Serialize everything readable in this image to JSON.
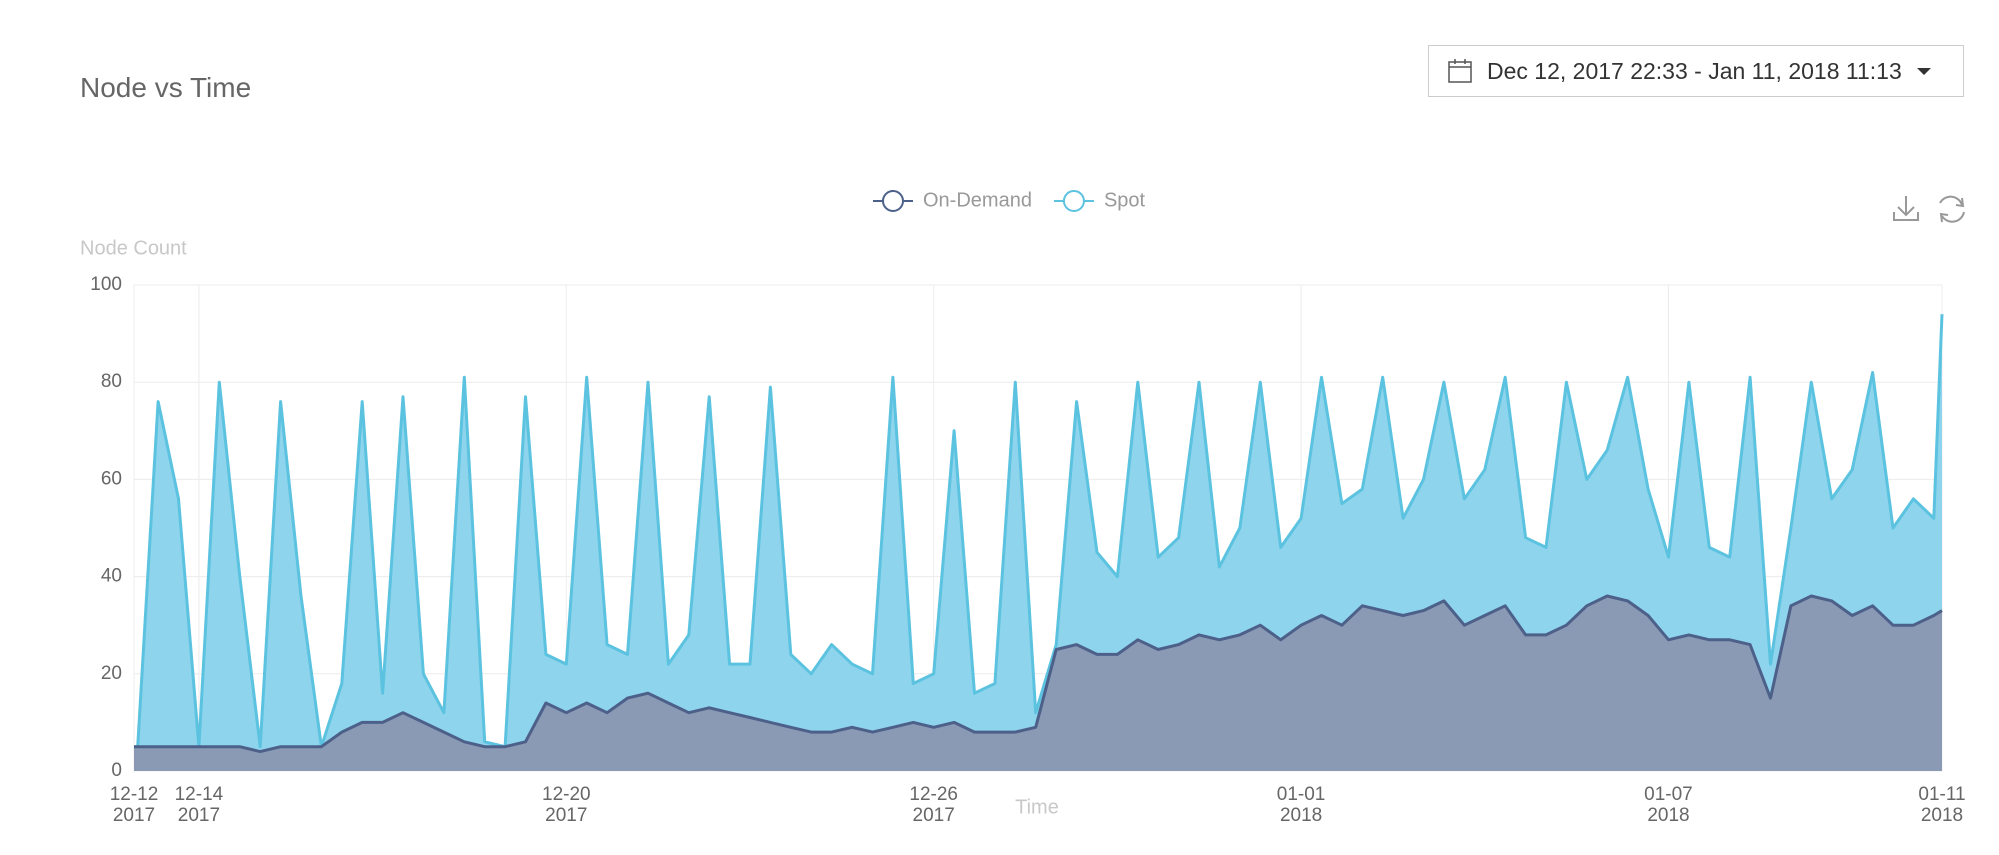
{
  "date_range": "Dec 12, 2017 22:33 - Jan 11, 2018 11:13",
  "chart_data": {
    "type": "area",
    "title": "Node vs Time",
    "y_label": "Node Count",
    "x_label": "Time",
    "xlim": [
      "2017-12-12T22:33",
      "2018-01-11T11:13"
    ],
    "xticks": [
      {
        "value": "2017-12-12T22:33",
        "label": "12-12\n2017"
      },
      {
        "value": "2017-12-14T00:00",
        "label": "12-14\n2017"
      },
      {
        "value": "2017-12-20T00:00",
        "label": "12-20\n2017"
      },
      {
        "value": "2017-12-26T00:00",
        "label": "12-26\n2017"
      },
      {
        "value": "2018-01-01T00:00",
        "label": "01-01\n2018"
      },
      {
        "value": "2018-01-07T00:00",
        "label": "01-07\n2018"
      },
      {
        "value": "2018-01-11T11:13",
        "label": "01-11\n2018"
      }
    ],
    "ylim": [
      0,
      100
    ],
    "yticks": [
      0,
      20,
      40,
      60,
      80,
      100
    ],
    "grid": true,
    "legend": "top",
    "x": [
      "2017-12-12T22:33",
      "2017-12-13T00:00",
      "2017-12-13T08:00",
      "2017-12-13T16:00",
      "2017-12-14T00:00",
      "2017-12-14T08:00",
      "2017-12-14T16:00",
      "2017-12-15T00:00",
      "2017-12-15T08:00",
      "2017-12-15T16:00",
      "2017-12-16T00:00",
      "2017-12-16T08:00",
      "2017-12-16T16:00",
      "2017-12-17T00:00",
      "2017-12-17T08:00",
      "2017-12-17T16:00",
      "2017-12-18T00:00",
      "2017-12-18T08:00",
      "2017-12-18T16:00",
      "2017-12-19T00:00",
      "2017-12-19T08:00",
      "2017-12-19T16:00",
      "2017-12-20T00:00",
      "2017-12-20T08:00",
      "2017-12-20T16:00",
      "2017-12-21T00:00",
      "2017-12-21T08:00",
      "2017-12-21T16:00",
      "2017-12-22T00:00",
      "2017-12-22T08:00",
      "2017-12-22T16:00",
      "2017-12-23T00:00",
      "2017-12-23T08:00",
      "2017-12-23T16:00",
      "2017-12-24T00:00",
      "2017-12-24T08:00",
      "2017-12-24T16:00",
      "2017-12-25T00:00",
      "2017-12-25T08:00",
      "2017-12-25T16:00",
      "2017-12-26T00:00",
      "2017-12-26T08:00",
      "2017-12-26T16:00",
      "2017-12-27T00:00",
      "2017-12-27T08:00",
      "2017-12-27T16:00",
      "2017-12-28T00:00",
      "2017-12-28T08:00",
      "2017-12-28T16:00",
      "2017-12-29T00:00",
      "2017-12-29T08:00",
      "2017-12-29T16:00",
      "2017-12-30T00:00",
      "2017-12-30T08:00",
      "2017-12-30T16:00",
      "2017-12-31T00:00",
      "2017-12-31T08:00",
      "2017-12-31T16:00",
      "2018-01-01T00:00",
      "2018-01-01T08:00",
      "2018-01-01T16:00",
      "2018-01-02T00:00",
      "2018-01-02T08:00",
      "2018-01-02T16:00",
      "2018-01-03T00:00",
      "2018-01-03T08:00",
      "2018-01-03T16:00",
      "2018-01-04T00:00",
      "2018-01-04T08:00",
      "2018-01-04T16:00",
      "2018-01-05T00:00",
      "2018-01-05T08:00",
      "2018-01-05T16:00",
      "2018-01-06T00:00",
      "2018-01-06T08:00",
      "2018-01-06T16:00",
      "2018-01-07T00:00",
      "2018-01-07T08:00",
      "2018-01-07T16:00",
      "2018-01-08T00:00",
      "2018-01-08T08:00",
      "2018-01-08T16:00",
      "2018-01-09T00:00",
      "2018-01-09T08:00",
      "2018-01-09T16:00",
      "2018-01-10T00:00",
      "2018-01-10T08:00",
      "2018-01-10T16:00",
      "2018-01-11T00:00",
      "2018-01-11T08:00",
      "2018-01-11T11:13"
    ],
    "series": [
      {
        "name": "On-Demand",
        "color": "#4c6089",
        "fill": "#8a9ab4",
        "values": [
          5,
          5,
          5,
          5,
          5,
          5,
          5,
          4,
          5,
          5,
          5,
          8,
          10,
          10,
          12,
          10,
          8,
          6,
          5,
          5,
          6,
          14,
          12,
          14,
          12,
          15,
          16,
          14,
          12,
          13,
          12,
          11,
          10,
          9,
          8,
          8,
          9,
          8,
          9,
          10,
          9,
          10,
          8,
          8,
          8,
          9,
          25,
          26,
          24,
          24,
          27,
          25,
          26,
          28,
          27,
          28,
          30,
          27,
          30,
          32,
          30,
          34,
          33,
          32,
          33,
          35,
          30,
          32,
          34,
          28,
          28,
          30,
          34,
          36,
          35,
          32,
          27,
          28,
          27,
          27,
          26,
          15,
          34,
          36,
          35,
          32,
          34,
          30,
          30,
          32,
          33
        ]
      },
      {
        "name": "Spot",
        "color": "#5bc2e0",
        "fill": "#8ed4ec",
        "values": [
          5,
          5,
          76,
          56,
          5,
          80,
          40,
          5,
          76,
          36,
          5,
          18,
          76,
          16,
          77,
          20,
          12,
          81,
          6,
          5,
          77,
          24,
          22,
          81,
          26,
          24,
          80,
          22,
          28,
          77,
          22,
          22,
          79,
          24,
          20,
          26,
          22,
          20,
          81,
          18,
          20,
          70,
          16,
          18,
          80,
          12,
          26,
          76,
          45,
          40,
          80,
          44,
          48,
          80,
          42,
          50,
          80,
          46,
          52,
          81,
          55,
          58,
          81,
          52,
          60,
          80,
          56,
          62,
          81,
          48,
          46,
          80,
          60,
          66,
          81,
          58,
          44,
          80,
          46,
          44,
          81,
          22,
          50,
          80,
          56,
          62,
          82,
          50,
          56,
          52,
          94
        ]
      }
    ]
  }
}
